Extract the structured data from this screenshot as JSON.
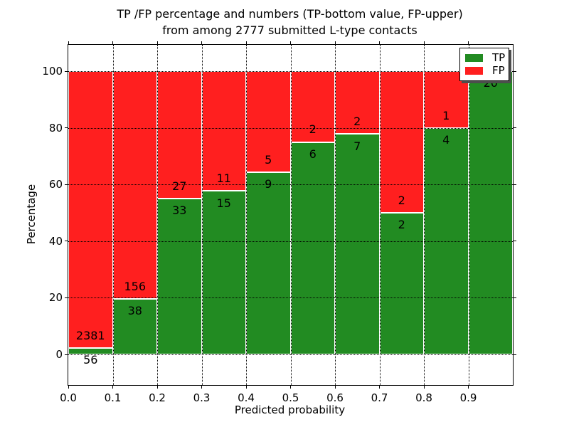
{
  "chart_data": {
    "type": "bar",
    "stacked": true,
    "normalized_to_percent": true,
    "title_line1": "TP /FP percentage and numbers (TP-bottom value, FP-upper)",
    "title_line2": "from among 2777 submitted L-type contacts",
    "xlabel": "Predicted probability",
    "ylabel": "Percentage",
    "bin_edges": [
      0.0,
      0.1,
      0.2,
      0.3,
      0.4,
      0.5,
      0.6,
      0.7,
      0.8,
      0.9,
      1.0
    ],
    "series": [
      {
        "name": "TP",
        "color": "#228b22",
        "counts": [
          56,
          38,
          33,
          15,
          9,
          6,
          7,
          2,
          4,
          20
        ]
      },
      {
        "name": "FP",
        "color": "#ff1f1f",
        "counts": [
          2381,
          156,
          27,
          11,
          5,
          2,
          2,
          2,
          1,
          0
        ]
      }
    ],
    "tp_percent": [
      2.3,
      19.6,
      55.0,
      57.7,
      64.3,
      75.0,
      77.8,
      50.0,
      80.0,
      100.0
    ],
    "xticks": [
      "0.0",
      "0.1",
      "0.2",
      "0.3",
      "0.4",
      "0.5",
      "0.6",
      "0.7",
      "0.8",
      "0.9"
    ],
    "yticks": [
      0,
      20,
      40,
      60,
      80,
      100
    ],
    "xlim": [
      0.0,
      1.0
    ],
    "ylim": [
      -10.8,
      109.3
    ],
    "grid": "dotted black, both axes, drawn above bars",
    "bar_edge_color": "#ffffff",
    "legend": {
      "position": "upper right",
      "shadow": true,
      "entries": [
        {
          "label": "TP",
          "color": "#228b22"
        },
        {
          "label": "FP",
          "color": "#ff1f1f"
        }
      ]
    }
  }
}
